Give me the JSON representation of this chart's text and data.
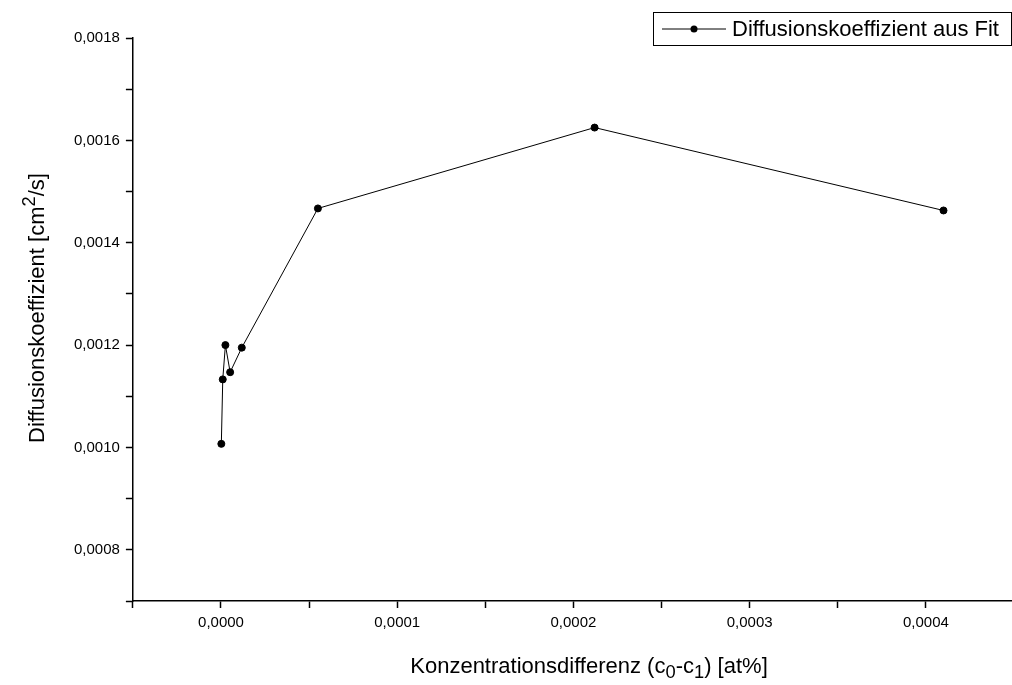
{
  "chart_data": {
    "type": "line",
    "xlabel": "Konzentrationsdifferenz (c$_{0}$-c$_{1}$) [at%]",
    "ylabel": "Diffusionskoeffizient [cm$^{2}$/s]",
    "series": [
      {
        "name": "Diffusionskoeffizient aus Fit",
        "color": "#000000",
        "x": [
          2e-07,
          1e-06,
          2.5e-06,
          5.2e-06,
          1.18e-05,
          5.5e-05,
          0.000212,
          0.00041
        ],
        "values": [
          0.001007,
          0.001133,
          0.0012,
          0.001147,
          0.001195,
          0.001467,
          0.001625,
          0.001463
        ]
      }
    ],
    "xlim": [
      -5e-05,
      0.00045
    ],
    "xticks": [
      {
        "value": -5e-05,
        "label": null
      },
      {
        "value": 0,
        "label": "0,0000"
      },
      {
        "value": 5e-05,
        "label": null
      },
      {
        "value": 0.0001,
        "label": "0,0001"
      },
      {
        "value": 0.00015,
        "label": null
      },
      {
        "value": 0.0002,
        "label": "0,0002"
      },
      {
        "value": 0.00025,
        "label": null
      },
      {
        "value": 0.0003,
        "label": "0,0003"
      },
      {
        "value": 0.00035,
        "label": null
      },
      {
        "value": 0.0004,
        "label": "0,0004"
      },
      {
        "value": 0.00045,
        "label": null
      }
    ],
    "ylim": [
      0.0007,
      0.0018
    ],
    "yticks": [
      {
        "value": 0.0007,
        "label": null
      },
      {
        "value": 0.0008,
        "label": "0,0008"
      },
      {
        "value": 0.0009,
        "label": null
      },
      {
        "value": 0.001,
        "label": "0,0010"
      },
      {
        "value": 0.0011,
        "label": null
      },
      {
        "value": 0.0012,
        "label": "0,0012"
      },
      {
        "value": 0.0013,
        "label": null
      },
      {
        "value": 0.0014,
        "label": "0,0014"
      },
      {
        "value": 0.0015,
        "label": null
      },
      {
        "value": 0.0016,
        "label": "0,0016"
      },
      {
        "value": 0.0017,
        "label": null
      },
      {
        "value": 0.0018,
        "label": "0,0018"
      }
    ],
    "grid": false,
    "legend": "top right",
    "marker": "circle",
    "line_style": "solid"
  }
}
